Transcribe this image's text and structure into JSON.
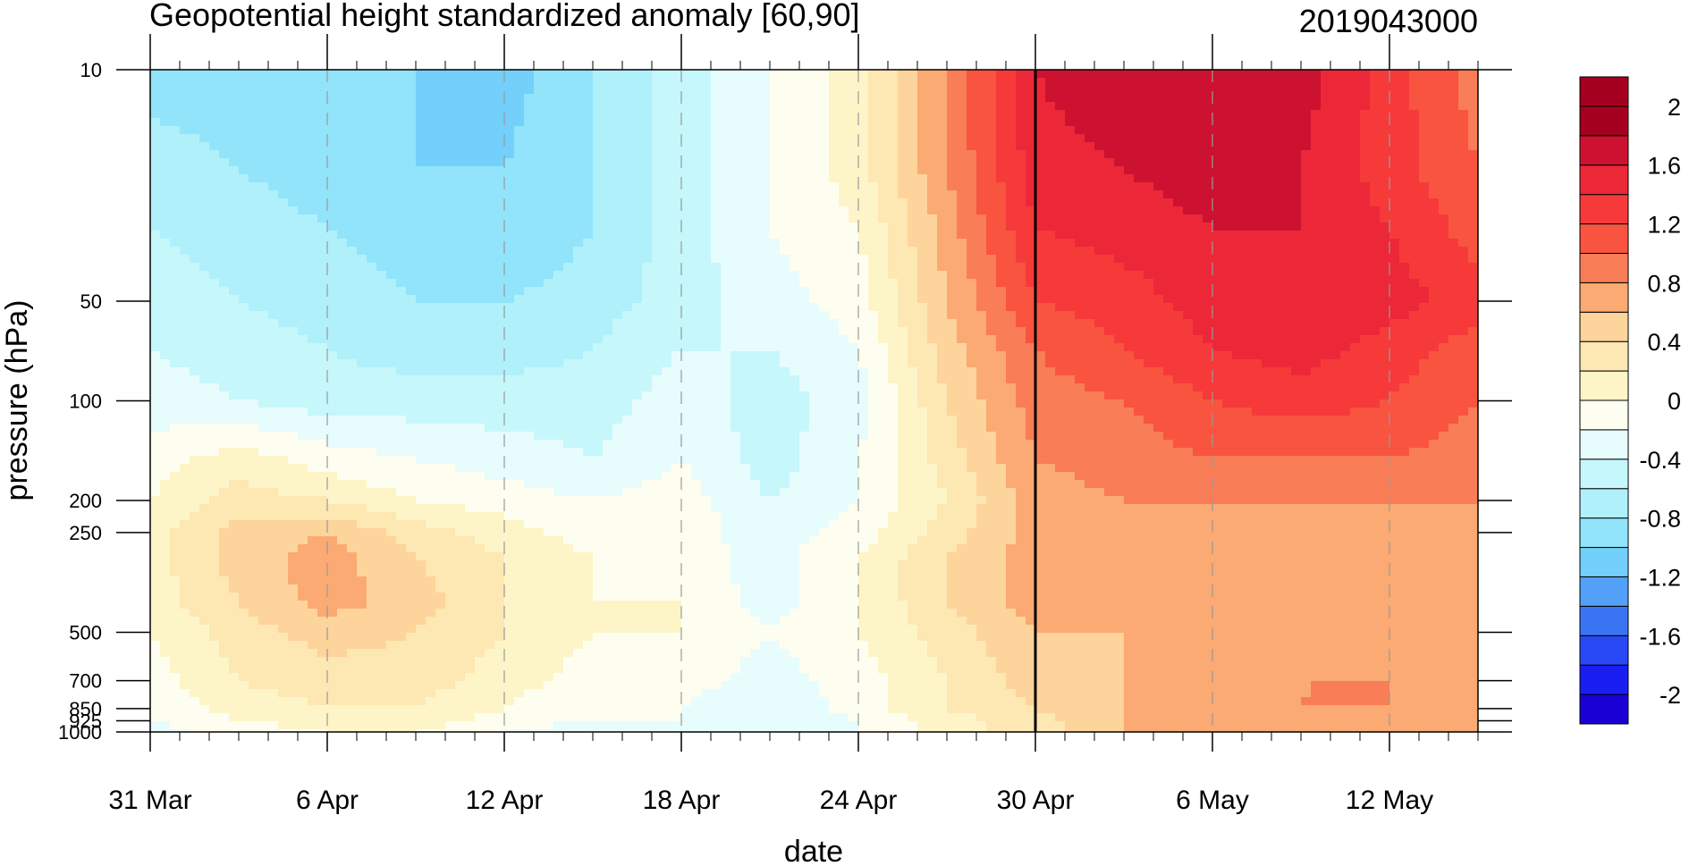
{
  "chart_data": {
    "type": "contour",
    "title": "Geopotential height standardized anomaly [60,90]",
    "date_label": "2019043000",
    "xlabel": "date",
    "ylabel": "pressure (hPa)",
    "x_range": [
      "2019-03-31",
      "2019-05-15"
    ],
    "x_ticks": [
      {
        "date": "2019-03-31",
        "label": "31 Mar"
      },
      {
        "date": "2019-04-06",
        "label": "6 Apr"
      },
      {
        "date": "2019-04-12",
        "label": "12 Apr"
      },
      {
        "date": "2019-04-18",
        "label": "18 Apr"
      },
      {
        "date": "2019-04-24",
        "label": "24 Apr"
      },
      {
        "date": "2019-04-30",
        "label": "30 Apr"
      },
      {
        "date": "2019-05-06",
        "label": "6 May"
      },
      {
        "date": "2019-05-12",
        "label": "12 May"
      }
    ],
    "y_scale": "log",
    "y_reversed": true,
    "y_range": [
      1000,
      10
    ],
    "y_ticks": [
      10,
      50,
      100,
      200,
      250,
      500,
      700,
      850,
      925,
      1000
    ],
    "y_tick_labels": [
      "10",
      "50",
      "100",
      "200",
      "250",
      "500",
      "700",
      "850",
      "925",
      "1000"
    ],
    "current_date_marker": "2019-04-30",
    "colorbar": {
      "levels": [
        -2.2,
        -2,
        -1.8,
        -1.6,
        -1.4,
        -1.2,
        -1,
        -0.8,
        -0.6,
        -0.4,
        -0.2,
        0,
        0.2,
        0.4,
        0.6,
        0.8,
        1,
        1.2,
        1.4,
        1.6,
        1.8,
        2,
        2.2
      ],
      "labels": [
        "2",
        "1.6",
        "1.2",
        "0.8",
        "0.4",
        "0",
        "-0.4",
        "-0.8",
        "-1.2",
        "-1.6",
        "-2"
      ],
      "colors": [
        "#1a00d4",
        "#1a1ef0",
        "#2848f5",
        "#3a74f2",
        "#52a0f8",
        "#72d0fb",
        "#92e4fa",
        "#b0f0fb",
        "#c6f7fb",
        "#e7fcfd",
        "#fefef0",
        "#fdf5c8",
        "#fde7b2",
        "#fdd49b",
        "#fbaa73",
        "#f97d56",
        "#f8543f",
        "#f63a3a",
        "#ec2838",
        "#cc1230",
        "#a50020",
        "#a50020"
      ]
    },
    "field": {
      "dates": [
        "2019-03-31",
        "2019-04-03",
        "2019-04-06",
        "2019-04-09",
        "2019-04-12",
        "2019-04-15",
        "2019-04-18",
        "2019-04-21",
        "2019-04-24",
        "2019-04-27",
        "2019-04-30",
        "2019-05-03",
        "2019-05-06",
        "2019-05-09",
        "2019-05-12",
        "2019-05-15"
      ],
      "levels_hpa": [
        10,
        20,
        30,
        50,
        70,
        100,
        150,
        200,
        250,
        300,
        400,
        500,
        700,
        850,
        925,
        1000
      ],
      "values": [
        [
          -0.9,
          -0.9,
          -0.9,
          -1.0,
          -1.1,
          -0.8,
          -0.5,
          -0.2,
          0.1,
          0.8,
          1.6,
          1.8,
          1.8,
          1.7,
          1.3,
          0.9
        ],
        [
          -0.7,
          -0.8,
          -0.9,
          -1.0,
          -1.0,
          -0.8,
          -0.5,
          -0.2,
          0.1,
          0.8,
          1.5,
          1.6,
          1.7,
          1.6,
          1.3,
          1.0
        ],
        [
          -0.6,
          -0.7,
          -0.8,
          -0.9,
          -1.0,
          -0.8,
          -0.5,
          -0.2,
          0.0,
          0.7,
          1.4,
          1.5,
          1.6,
          1.6,
          1.4,
          1.1
        ],
        [
          -0.5,
          -0.6,
          -0.7,
          -0.8,
          -0.8,
          -0.7,
          -0.5,
          -0.3,
          -0.1,
          0.6,
          1.2,
          1.3,
          1.5,
          1.6,
          1.5,
          1.3
        ],
        [
          -0.4,
          -0.5,
          -0.6,
          -0.7,
          -0.7,
          -0.6,
          -0.4,
          -0.4,
          -0.2,
          0.5,
          1.0,
          1.2,
          1.4,
          1.5,
          1.3,
          1.1
        ],
        [
          -0.3,
          -0.4,
          -0.5,
          -0.5,
          -0.5,
          -0.5,
          -0.3,
          -0.5,
          -0.3,
          0.4,
          0.9,
          1.0,
          1.2,
          1.3,
          1.2,
          1.0
        ],
        [
          -0.1,
          0.1,
          -0.1,
          -0.2,
          -0.3,
          -0.4,
          -0.2,
          -0.5,
          -0.2,
          0.3,
          0.8,
          0.9,
          1.0,
          1.0,
          1.0,
          0.9
        ],
        [
          0.0,
          0.3,
          0.2,
          0.0,
          -0.1,
          -0.2,
          -0.1,
          -0.4,
          -0.2,
          0.2,
          0.7,
          0.8,
          0.8,
          0.8,
          0.8,
          0.8
        ],
        [
          0.1,
          0.5,
          0.6,
          0.3,
          0.1,
          -0.1,
          -0.1,
          -0.3,
          -0.1,
          0.3,
          0.7,
          0.7,
          0.7,
          0.7,
          0.7,
          0.7
        ],
        [
          0.1,
          0.5,
          0.7,
          0.4,
          0.2,
          0.0,
          -0.1,
          -0.3,
          0.0,
          0.4,
          0.7,
          0.7,
          0.7,
          0.7,
          0.7,
          0.7
        ],
        [
          0.1,
          0.4,
          0.7,
          0.5,
          0.2,
          0.0,
          0.0,
          -0.3,
          0.0,
          0.4,
          0.7,
          0.7,
          0.6,
          0.7,
          0.7,
          0.7
        ],
        [
          0.0,
          0.3,
          0.5,
          0.4,
          0.2,
          0.0,
          0.0,
          -0.2,
          0.0,
          0.3,
          0.6,
          0.6,
          0.6,
          0.7,
          0.7,
          0.7
        ],
        [
          -0.1,
          0.2,
          0.3,
          0.3,
          0.1,
          -0.1,
          -0.1,
          -0.3,
          -0.1,
          0.2,
          0.5,
          0.6,
          0.7,
          0.8,
          0.8,
          0.7
        ],
        [
          -0.2,
          0.1,
          0.2,
          0.2,
          0.0,
          -0.2,
          -0.2,
          -0.4,
          -0.1,
          0.2,
          0.4,
          0.6,
          0.7,
          0.8,
          0.8,
          0.7
        ],
        [
          -0.2,
          0.0,
          0.1,
          0.1,
          -0.1,
          -0.2,
          -0.2,
          -0.4,
          -0.2,
          0.1,
          0.3,
          0.6,
          0.7,
          0.8,
          0.7,
          0.7
        ],
        [
          -0.3,
          -0.1,
          0.0,
          0.0,
          -0.2,
          -0.3,
          -0.2,
          -0.4,
          -0.2,
          0.1,
          0.3,
          0.6,
          0.7,
          0.7,
          0.7,
          0.7
        ]
      ]
    }
  }
}
